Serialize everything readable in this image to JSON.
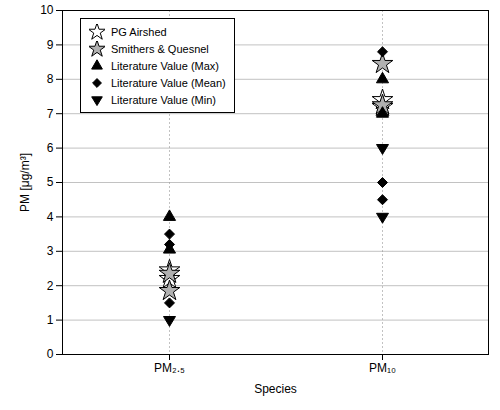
{
  "chart_data": {
    "type": "scatter",
    "x_label": "Species",
    "y_label": "PM [μg/m³]",
    "categories": [
      "PM₂.₅",
      "PM₁₀"
    ],
    "ylim": [
      0,
      10
    ],
    "yticks": [
      0,
      1,
      2,
      3,
      4,
      5,
      6,
      7,
      8,
      9,
      10
    ],
    "grid": true,
    "legend": "upper left",
    "series": [
      {
        "name": "PG Airshed",
        "marker": "star",
        "color": "#ffffff",
        "x": [
          "PM₂.₅",
          "PM₂.₅",
          "PM₁₀",
          "PM₁₀"
        ],
        "values": [
          2.45,
          2.2,
          7.4,
          7.2
        ]
      },
      {
        "name": "Smithers & Quesnel",
        "marker": "star",
        "color": "#b0b0b0",
        "x": [
          "PM₂.₅",
          "PM₂.₅",
          "PM₁₀",
          "PM₁₀"
        ],
        "values": [
          1.85,
          2.35,
          8.45,
          7.25
        ]
      },
      {
        "name": "Literature Value (Max)",
        "marker": "triangle",
        "color": "#000000",
        "x": [
          "PM₂.₅",
          "PM₂.₅",
          "PM₁₀",
          "PM₁₀"
        ],
        "values": [
          4.0,
          3.05,
          8.0,
          7.0
        ]
      },
      {
        "name": "Literature Value (Mean)",
        "marker": "diamond",
        "color": "#000000",
        "x": [
          "PM₂.₅",
          "PM₂.₅",
          "PM₂.₅",
          "PM₁₀",
          "PM₁₀",
          "PM₁₀"
        ],
        "values": [
          3.5,
          3.2,
          1.5,
          8.8,
          5.0,
          4.5
        ]
      },
      {
        "name": "Literature Value (Min)",
        "marker": "triangle-down",
        "color": "#000000",
        "x": [
          "PM₂.₅",
          "PM₁₀",
          "PM₁₀"
        ],
        "values": [
          1.0,
          6.0,
          4.0
        ]
      }
    ]
  }
}
